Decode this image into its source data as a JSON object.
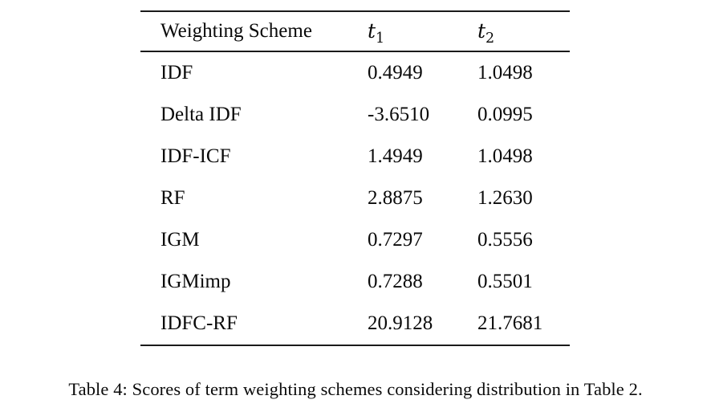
{
  "table": {
    "header": {
      "scheme": "Weighting Scheme",
      "t1_base": "t",
      "t1_sub": "1",
      "t2_base": "t",
      "t2_sub": "2"
    },
    "rows": [
      {
        "scheme": "IDF",
        "t1": "0.4949",
        "t2": "1.0498"
      },
      {
        "scheme": "Delta IDF",
        "t1": "-3.6510",
        "t2": "0.0995"
      },
      {
        "scheme": "IDF-ICF",
        "t1": "1.4949",
        "t2": "1.0498"
      },
      {
        "scheme": "RF",
        "t1": "2.8875",
        "t2": "1.2630"
      },
      {
        "scheme": "IGM",
        "t1": "0.7297",
        "t2": "0.5556"
      },
      {
        "scheme": "IGMimp",
        "t1": "0.7288",
        "t2": "0.5501"
      },
      {
        "scheme": "IDFC-RF",
        "t1": "20.9128",
        "t2": "21.7681"
      }
    ]
  },
  "caption": "Table 4: Scores of term weighting schemes considering distribution in Table 2.",
  "colors": {
    "background": "#ffffff",
    "text": "#0a0a0a",
    "rule": "#1a1a1a"
  }
}
